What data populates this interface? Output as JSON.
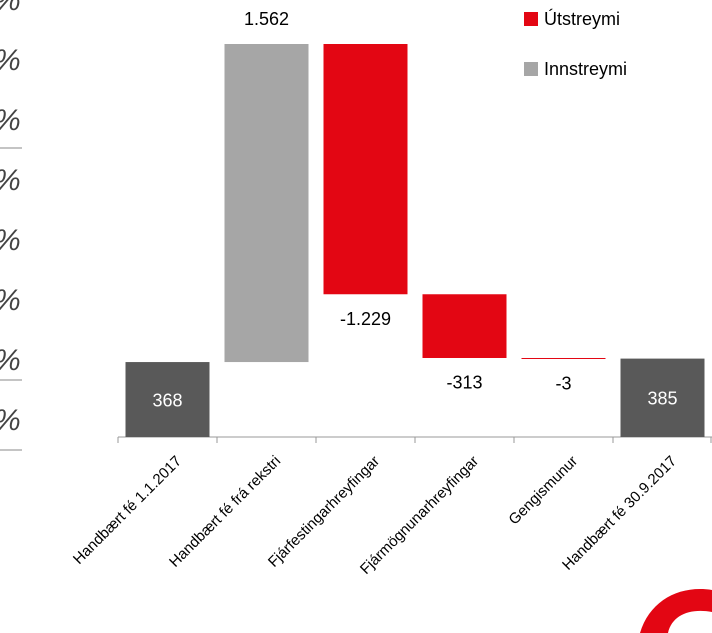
{
  "chart_data": {
    "type": "waterfall",
    "categories": [
      "Handbært fé 1.1.2017",
      "Handbært fé frá rekstri",
      "Fjárfestingarhreyfingar",
      "Fjármögnunarhreyfingar",
      "Gengismunur",
      "Handbært fé 30.9.2017"
    ],
    "values": [
      368,
      1562,
      -1229,
      -313,
      -3,
      385
    ],
    "value_labels": [
      "368",
      "1.562",
      "-1.229",
      "-313",
      "-3",
      "385"
    ],
    "total_color": "#595959",
    "series": [
      {
        "name": "Útstreymi",
        "color": "#e30613"
      },
      {
        "name": "Innstreymi",
        "color": "#a6a6a6"
      }
    ],
    "side_fragments": [
      "%",
      "%",
      "%",
      "%",
      "%",
      "%",
      "%",
      "%"
    ]
  }
}
